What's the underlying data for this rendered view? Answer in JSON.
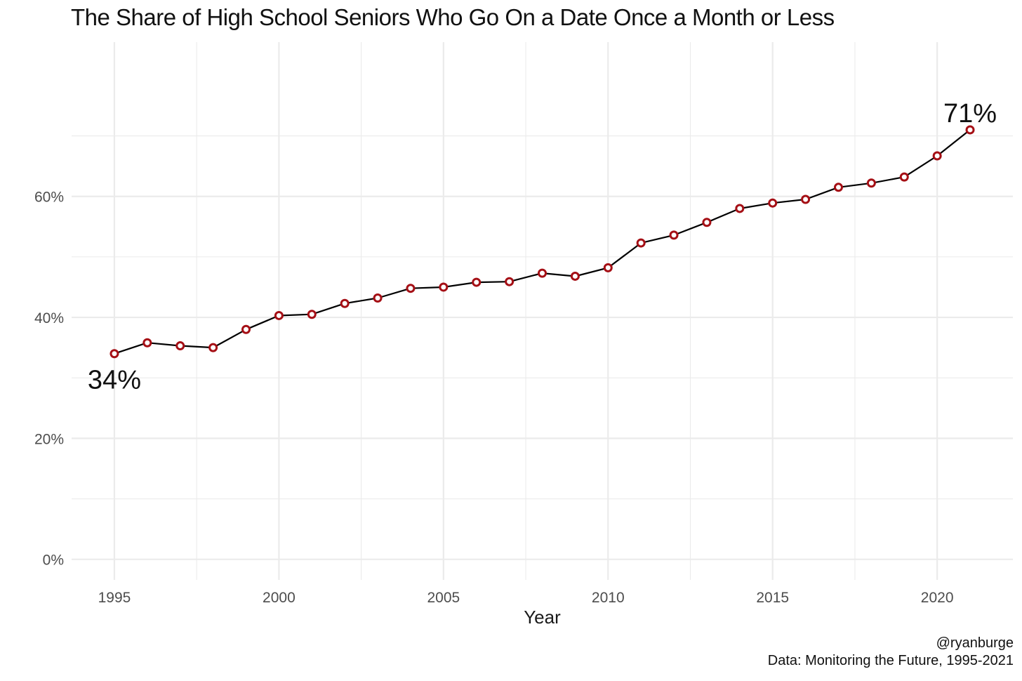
{
  "chart_data": {
    "type": "line",
    "title": "The Share of High School Seniors Who Go On a Date Once a Month or Less",
    "xlabel": "Year",
    "ylabel": "",
    "x": [
      1995,
      1996,
      1997,
      1998,
      1999,
      2000,
      2001,
      2002,
      2003,
      2004,
      2005,
      2006,
      2007,
      2008,
      2009,
      2010,
      2011,
      2012,
      2013,
      2014,
      2015,
      2016,
      2017,
      2018,
      2019,
      2020,
      2021
    ],
    "series": [
      {
        "values": [
          0.34,
          0.358,
          0.353,
          0.35,
          0.38,
          0.403,
          0.405,
          0.423,
          0.432,
          0.448,
          0.45,
          0.458,
          0.459,
          0.473,
          0.468,
          0.482,
          0.523,
          0.536,
          0.557,
          0.58,
          0.589,
          0.595,
          0.615,
          0.622,
          0.632,
          0.667,
          0.71
        ]
      }
    ],
    "x_ticks": [
      1995,
      2000,
      2005,
      2010,
      2015,
      2020
    ],
    "y_ticks": [
      0,
      0.2,
      0.4,
      0.6
    ],
    "y_tick_labels": [
      "0%",
      "20%",
      "40%",
      "60%"
    ],
    "xlim": [
      1993.7,
      2022.3
    ],
    "ylim": [
      -0.034,
      0.855
    ],
    "grid": true,
    "annotations": [
      {
        "text": "34%",
        "x": 1995,
        "y": 0.34
      },
      {
        "text": "71%",
        "x": 2021,
        "y": 0.71
      }
    ],
    "colors": {
      "line": "#000000",
      "marker_edge": "#a50f15",
      "marker_fill": "#ffffff",
      "grid": "#ebebeb"
    }
  },
  "caption": {
    "handle": "@ryanburge",
    "source": "Data: Monitoring the Future, 1995-2021"
  }
}
